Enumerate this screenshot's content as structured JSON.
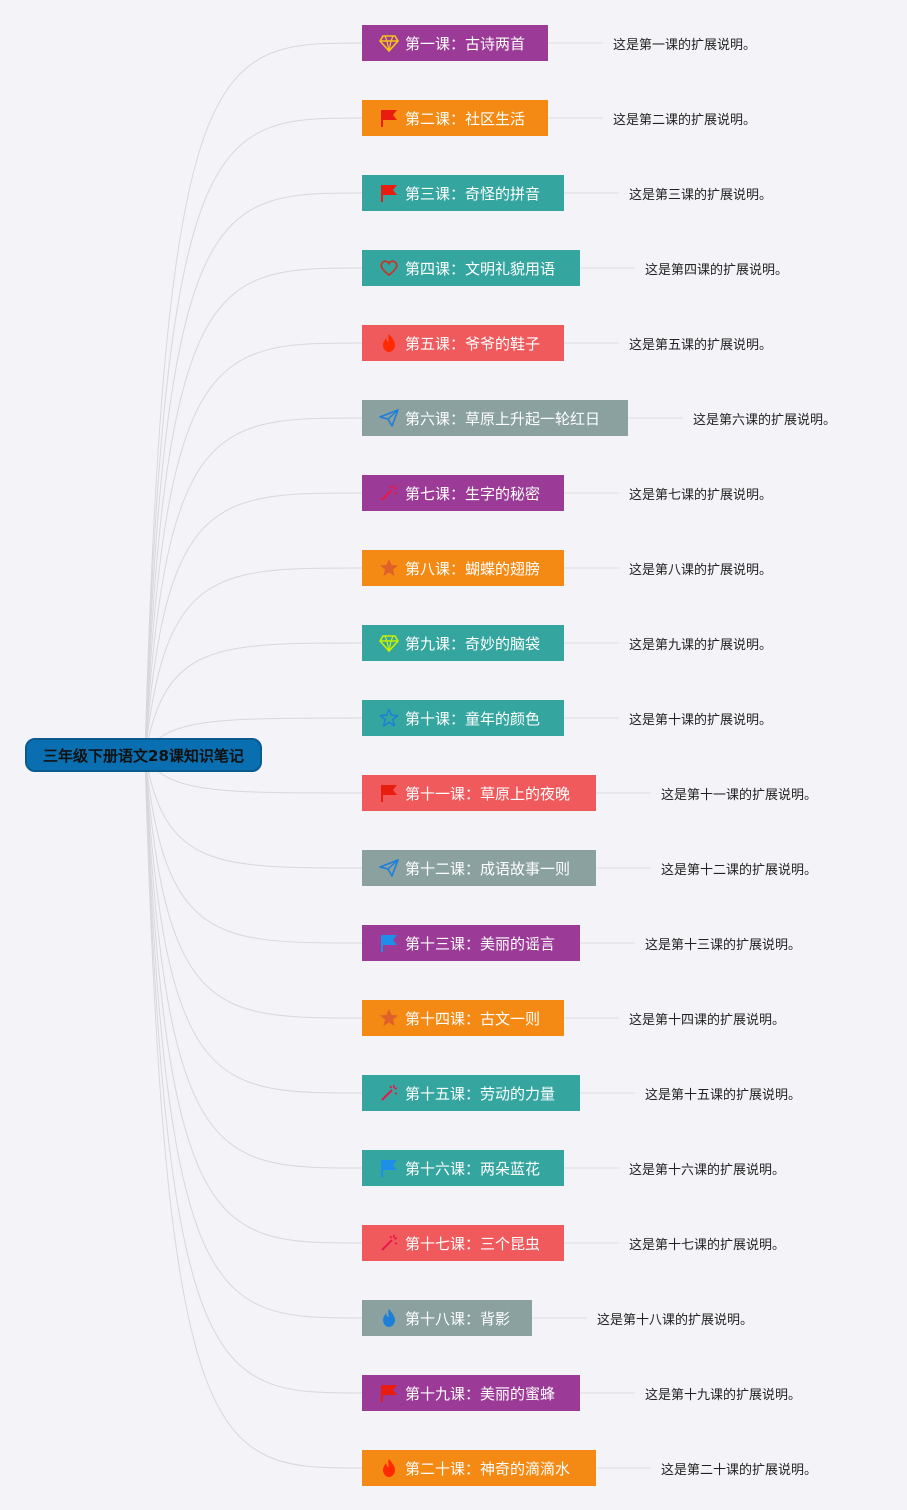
{
  "root": {
    "title": "三年级下册语文28课知识笔记"
  },
  "lessons": [
    {
      "title": "第一课：古诗两首",
      "note": "这是第一课的扩展说明。",
      "color": "#9c3a97",
      "icon": "diamond-icon",
      "icon_color": "#f5c518"
    },
    {
      "title": "第二课：社区生活",
      "note": "这是第二课的扩展说明。",
      "color": "#f48a14",
      "icon": "flag-icon",
      "icon_color": "#e81d0f"
    },
    {
      "title": "第三课：奇怪的拼音",
      "note": "这是第三课的扩展说明。",
      "color": "#35a5a0",
      "icon": "flag-icon",
      "icon_color": "#e81d0f"
    },
    {
      "title": "第四课：文明礼貌用语",
      "note": "这是第四课的扩展说明。",
      "color": "#35a5a0",
      "icon": "heart-icon",
      "icon_color": "#c0392b"
    },
    {
      "title": "第五课：爷爷的鞋子",
      "note": "这是第五课的扩展说明。",
      "color": "#f05a5c",
      "icon": "flame-icon",
      "icon_color": "#ff2a00"
    },
    {
      "title": "第六课：草原上升起一轮红日",
      "note": "这是第六课的扩展说明。",
      "color": "#8aa1a0",
      "icon": "paper-plane-icon",
      "icon_color": "#1e7fd8"
    },
    {
      "title": "第七课：生字的秘密",
      "note": "这是第七课的扩展说明。",
      "color": "#9c3a97",
      "icon": "magic-wand-icon",
      "icon_color": "#e8194a"
    },
    {
      "title": "第八课：蝴蝶的翅膀",
      "note": "这是第八课的扩展说明。",
      "color": "#f48a14",
      "icon": "star-icon",
      "icon_color": "#e0602a"
    },
    {
      "title": "第九课：奇妙的脑袋",
      "note": "这是第九课的扩展说明。",
      "color": "#35a5a0",
      "icon": "diamond-icon",
      "icon_color": "#c6f000"
    },
    {
      "title": "第十课：童年的颜色",
      "note": "这是第十课的扩展说明。",
      "color": "#35a5a0",
      "icon": "star-outline-icon",
      "icon_color": "#1e7fd8"
    },
    {
      "title": "第十一课：草原上的夜晚",
      "note": "这是第十一课的扩展说明。",
      "color": "#f05a5c",
      "icon": "flag-icon",
      "icon_color": "#e81d0f"
    },
    {
      "title": "第十二课：成语故事一则",
      "note": "这是第十二课的扩展说明。",
      "color": "#8aa1a0",
      "icon": "paper-plane-icon",
      "icon_color": "#1e7fd8"
    },
    {
      "title": "第十三课：美丽的谣言",
      "note": "这是第十三课的扩展说明。",
      "color": "#9c3a97",
      "icon": "flag-icon",
      "icon_color": "#1e8fe8"
    },
    {
      "title": "第十四课：古文一则",
      "note": "这是第十四课的扩展说明。",
      "color": "#f48a14",
      "icon": "star-icon",
      "icon_color": "#e0602a"
    },
    {
      "title": "第十五课：劳动的力量",
      "note": "这是第十五课的扩展说明。",
      "color": "#35a5a0",
      "icon": "magic-wand-icon",
      "icon_color": "#e8194a"
    },
    {
      "title": "第十六课：两朵蓝花",
      "note": "这是第十六课的扩展说明。",
      "color": "#35a5a0",
      "icon": "flag-icon",
      "icon_color": "#1e8fe8"
    },
    {
      "title": "第十七课：三个昆虫",
      "note": "这是第十七课的扩展说明。",
      "color": "#f05a5c",
      "icon": "magic-wand-icon",
      "icon_color": "#e8194a"
    },
    {
      "title": "第十八课：背影",
      "note": "这是第十八课的扩展说明。",
      "color": "#8aa1a0",
      "icon": "flame-icon",
      "icon_color": "#1e7fd8"
    },
    {
      "title": "第十九课：美丽的蜜蜂",
      "note": "这是第十九课的扩展说明。",
      "color": "#9c3a97",
      "icon": "flag-icon",
      "icon_color": "#e81d0f"
    },
    {
      "title": "第二十课：神奇的滴滴水",
      "note": "这是第二十课的扩展说明。",
      "color": "#f48a14",
      "icon": "flame-icon",
      "icon_color": "#ff2a00"
    }
  ]
}
